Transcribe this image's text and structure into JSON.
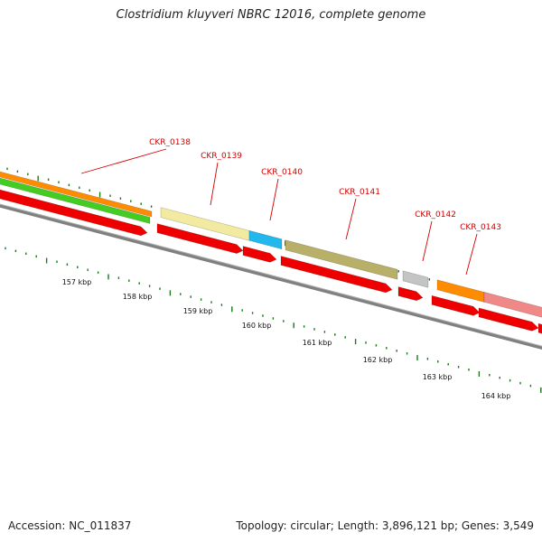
{
  "title": "Clostridium kluyveri NBRC 12016, complete genome",
  "footer": {
    "accession": "Accession: NC_011837",
    "summary": "Topology: circular; Length: 3,896,121 bp; Genes: 3,549"
  },
  "genes": [
    {
      "id": "CKR_0138"
    },
    {
      "id": "CKR_0139"
    },
    {
      "id": "CKR_0140"
    },
    {
      "id": "CKR_0141"
    },
    {
      "id": "CKR_0142"
    },
    {
      "id": "CKR_0143"
    }
  ],
  "kbp_ticks": [
    "157 kbp",
    "158 kbp",
    "159 kbp",
    "160 kbp",
    "161 kbp",
    "162 kbp",
    "163 kbp",
    "164 kbp"
  ],
  "colors": {
    "cds": "#ee0000",
    "orange": "#ff8c00",
    "green": "#44cc22",
    "pale_yellow": "#f2eaa0",
    "cyan": "#22b8ee",
    "olive": "#b8b068",
    "gray_block": "#c4c4c4",
    "pink": "#f08888",
    "backbone": "#808080",
    "tick": "#1a7a1a",
    "label": "#d40000"
  }
}
